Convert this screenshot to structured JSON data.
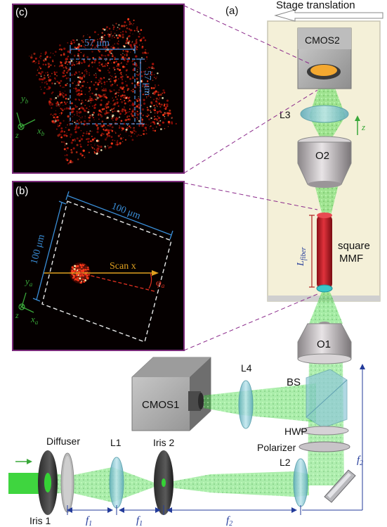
{
  "panels": {
    "a_label": "(a)",
    "b_label": "(b)",
    "c_label": "(c)"
  },
  "labels": {
    "stage_translation": "Stage translation",
    "cmos2": "CMOS2",
    "l3": "L3",
    "z_axis": "z",
    "o2": "O2",
    "l_fiber": "L",
    "l_fiber_sub": "fiber",
    "fiber_square": "square",
    "fiber_mmf": "MMF",
    "o1": "O1",
    "bs": "BS",
    "l4": "L4",
    "cmos1": "CMOS1",
    "hwp": "HWP",
    "polarizer": "Polarizer",
    "l2": "L2",
    "diffuser": "Diffuser",
    "l1": "L1",
    "iris2": "Iris 2",
    "iris1": "Iris 1",
    "f1_a": "f",
    "f1_a_sub": "1",
    "f1_b": "f",
    "f1_b_sub": "1",
    "f2_a": "f",
    "f2_a_sub": "2",
    "f2_b": "f",
    "f2_b_sub": "2"
  },
  "inset_c": {
    "dim_horizontal": "57 μm",
    "dim_vertical": "57 μm",
    "axis_y": "y",
    "axis_y_sub": "b",
    "axis_x": "x",
    "axis_x_sub": "b",
    "axis_z": "z"
  },
  "inset_b": {
    "dim_top": "100 μm",
    "dim_left": "100 μm",
    "scan_label": "Scan x",
    "phi": "φ",
    "phi_sub": "a",
    "axis_y": "y",
    "axis_y_sub": "a",
    "axis_x": "x",
    "axis_x_sub": "a",
    "axis_z": "z"
  },
  "colors": {
    "beam": "#33d633",
    "panel_bg": "#f4f0d8",
    "dim_blue": "#3a8ed8",
    "fiber_red": "#c81e28",
    "label_blue": "#233b9a"
  }
}
